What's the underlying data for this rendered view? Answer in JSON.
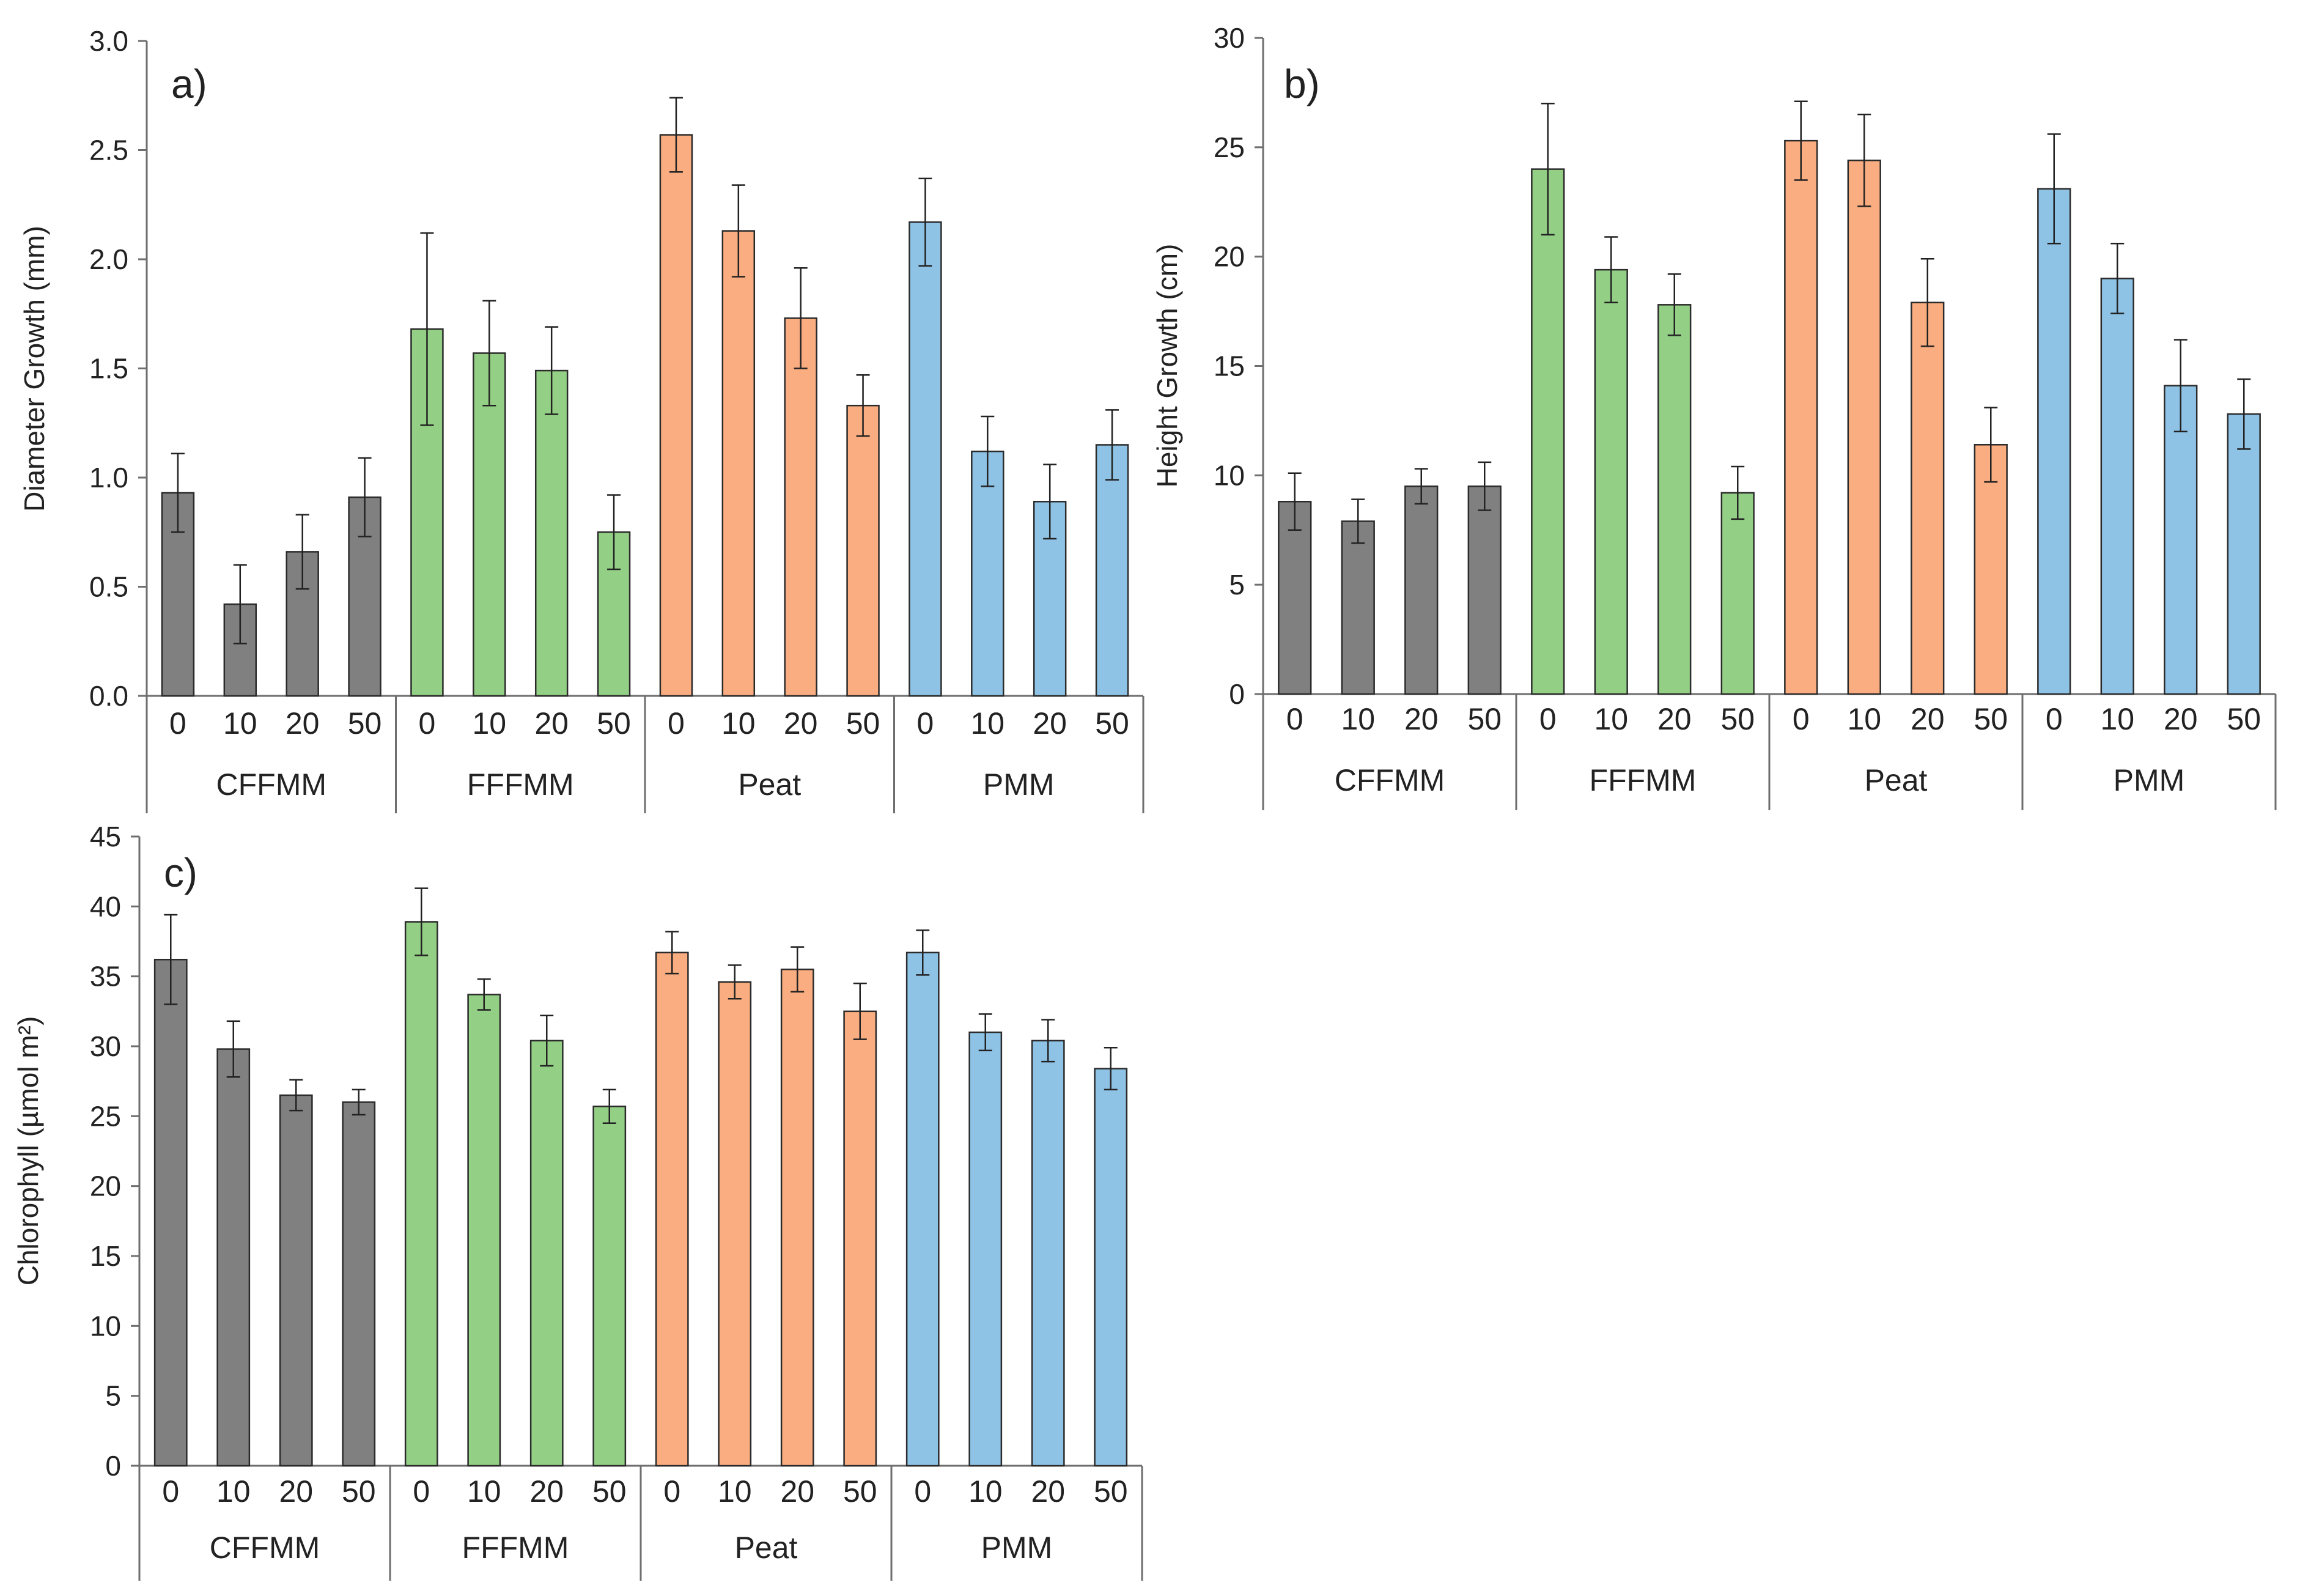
{
  "figure": {
    "colors": {
      "CFFMM": "#808080",
      "FFFMM": "#93cf85",
      "Peat": "#f9ad80",
      "PMM": "#8fc3e6",
      "axis": "#6e6e6e",
      "stroke": "#2b2b2b"
    }
  },
  "chart_data": [
    {
      "panel": "a)",
      "type": "bar",
      "ylabel": "Diameter Growth (mm)",
      "ylim": [
        0,
        3.0
      ],
      "yticks": [
        "0.0",
        "0.5",
        "1.0",
        "1.5",
        "2.0",
        "2.5",
        "3.0"
      ],
      "groups": [
        "CFFMM",
        "FFFMM",
        "Peat",
        "PMM"
      ],
      "categories": [
        "0",
        "10",
        "20",
        "50"
      ],
      "series": [
        {
          "name": "CFFMM",
          "values": [
            0.93,
            0.42,
            0.66,
            0.91
          ],
          "errors": [
            0.18,
            0.18,
            0.17,
            0.18
          ]
        },
        {
          "name": "FFFMM",
          "values": [
            1.68,
            1.57,
            1.49,
            0.75
          ],
          "errors": [
            0.44,
            0.24,
            0.2,
            0.17
          ]
        },
        {
          "name": "Peat",
          "values": [
            2.57,
            2.13,
            1.73,
            1.33
          ],
          "errors": [
            0.17,
            0.21,
            0.23,
            0.14
          ]
        },
        {
          "name": "PMM",
          "values": [
            2.17,
            1.12,
            0.89,
            1.15
          ],
          "errors": [
            0.2,
            0.16,
            0.17,
            0.16
          ]
        }
      ]
    },
    {
      "panel": "b)",
      "type": "bar",
      "ylabel": "Height Growth (cm)",
      "ylim": [
        0,
        30
      ],
      "yticks": [
        "0",
        "5",
        "10",
        "15",
        "20",
        "25",
        "30"
      ],
      "groups": [
        "CFFMM",
        "FFFMM",
        "Peat",
        "PMM"
      ],
      "categories": [
        "0",
        "10",
        "20",
        "50"
      ],
      "series": [
        {
          "name": "CFFMM",
          "values": [
            8.8,
            7.9,
            9.5,
            9.5
          ],
          "errors": [
            1.3,
            1.0,
            0.8,
            1.1
          ]
        },
        {
          "name": "FFFMM",
          "values": [
            24.0,
            19.4,
            17.8,
            9.2
          ],
          "errors": [
            3.0,
            1.5,
            1.4,
            1.2
          ]
        },
        {
          "name": "Peat",
          "values": [
            25.3,
            24.4,
            17.9,
            11.4
          ],
          "errors": [
            1.8,
            2.1,
            2.0,
            1.7
          ]
        },
        {
          "name": "PMM",
          "values": [
            23.1,
            19.0,
            14.1,
            12.8
          ],
          "errors": [
            2.5,
            1.6,
            2.1,
            1.6
          ]
        }
      ]
    },
    {
      "panel": "c)",
      "type": "bar",
      "ylabel": "Chlorophyll (µmol m²)",
      "ylim": [
        0,
        45
      ],
      "yticks": [
        "0",
        "5",
        "10",
        "15",
        "20",
        "25",
        "30",
        "35",
        "40",
        "45"
      ],
      "groups": [
        "CFFMM",
        "FFFMM",
        "Peat",
        "PMM"
      ],
      "categories": [
        "0",
        "10",
        "20",
        "50"
      ],
      "series": [
        {
          "name": "CFFMM",
          "values": [
            36.2,
            29.8,
            26.5,
            26.0
          ],
          "errors": [
            3.2,
            2.0,
            1.1,
            0.9
          ]
        },
        {
          "name": "FFFMM",
          "values": [
            38.9,
            33.7,
            30.4,
            25.7
          ],
          "errors": [
            2.4,
            1.1,
            1.8,
            1.2
          ]
        },
        {
          "name": "Peat",
          "values": [
            36.7,
            34.6,
            35.5,
            32.5
          ],
          "errors": [
            1.5,
            1.2,
            1.6,
            2.0
          ]
        },
        {
          "name": "PMM",
          "values": [
            36.7,
            31.0,
            30.4,
            28.4
          ],
          "errors": [
            1.6,
            1.3,
            1.5,
            1.5
          ]
        }
      ]
    }
  ]
}
